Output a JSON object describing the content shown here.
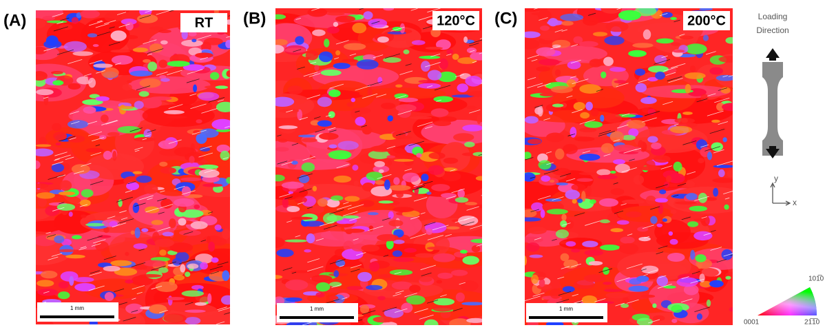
{
  "panels": [
    {
      "label": "(A)",
      "condition": "RT",
      "scale_bar": "1 mm"
    },
    {
      "label": "(B)",
      "condition": "120°C",
      "scale_bar": "1 mm"
    },
    {
      "label": "(C)",
      "condition": "200°C",
      "scale_bar": "1 mm"
    }
  ],
  "loading_direction": {
    "title_lines": [
      "Loading",
      "Direction"
    ],
    "axis_y": "y",
    "axis_x": "x"
  },
  "ipf_legend": {
    "top": "101̅0",
    "left": "0001",
    "right": "21̅1̅0"
  }
}
